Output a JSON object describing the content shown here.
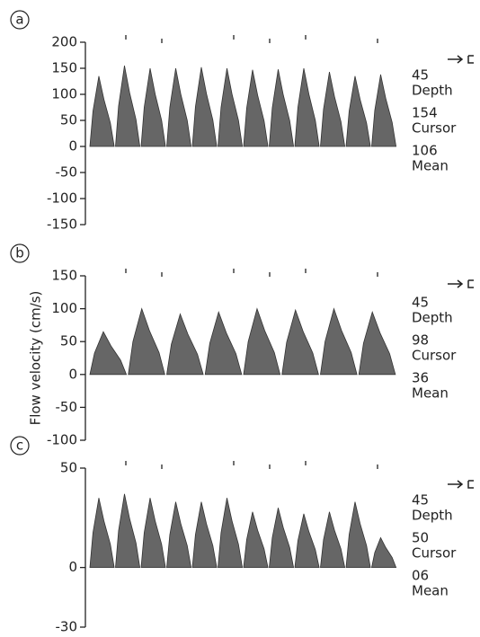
{
  "chart_data": [
    {
      "type": "spectrum",
      "panel": "a",
      "ylim": [
        -150,
        200
      ],
      "yticks": [
        -150,
        -100,
        -50,
        0,
        50,
        100,
        150,
        200
      ],
      "values": [
        135,
        155,
        150,
        150,
        152,
        150,
        147,
        148,
        150,
        143,
        135,
        138
      ],
      "color": "#333",
      "readouts": [
        "45",
        "Depth",
        "154",
        "Cursor",
        "106",
        "Mean"
      ]
    },
    {
      "type": "spectrum",
      "panel": "b",
      "ylabel": "Flow velocity (cm/s)",
      "ylim": [
        -100,
        150
      ],
      "yticks": [
        -100,
        -50,
        0,
        50,
        100,
        150
      ],
      "values": [
        65,
        100,
        92,
        95,
        100,
        98,
        100,
        95
      ],
      "color": "#333",
      "readouts": [
        "45",
        "Depth",
        "98",
        "Cursor",
        "36",
        "Mean"
      ]
    },
    {
      "type": "spectrum",
      "panel": "c",
      "ylim": [
        -30,
        50
      ],
      "yticks": [
        -30,
        0,
        50
      ],
      "values": [
        35,
        37,
        35,
        33,
        33,
        35,
        28,
        30,
        27,
        28,
        33,
        15
      ],
      "color": "#333",
      "readouts": [
        "45",
        "Depth",
        "50",
        "Cursor",
        "06",
        "Mean"
      ]
    }
  ]
}
